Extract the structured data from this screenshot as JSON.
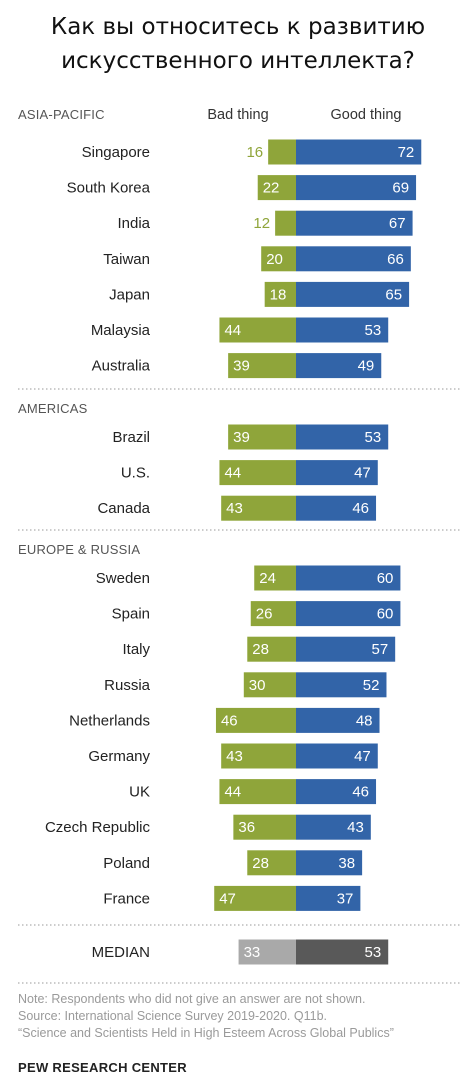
{
  "title_lines": [
    "Как вы относитесь к развитию",
    "искусственного интеллекта?"
  ],
  "chart_data": {
    "type": "bar",
    "orientation": "diverging-horizontal",
    "column_headers": {
      "left": "Bad thing",
      "right": "Good thing"
    },
    "colors": {
      "bad": "#8fa53a",
      "good": "#3264a8",
      "median_bad": "#a9a9a9",
      "median_good": "#595959",
      "label_inside": "#ffffff",
      "label_outside": "#8fa53a"
    },
    "series": [
      {
        "name": "Bad thing"
      },
      {
        "name": "Good thing"
      }
    ],
    "groups": [
      {
        "name": "ASIA-PACIFIC",
        "rows": [
          {
            "country": "Singapore",
            "bad": 16,
            "good": 72
          },
          {
            "country": "South Korea",
            "bad": 22,
            "good": 69
          },
          {
            "country": "India",
            "bad": 12,
            "good": 67
          },
          {
            "country": "Taiwan",
            "bad": 20,
            "good": 66
          },
          {
            "country": "Japan",
            "bad": 18,
            "good": 65
          },
          {
            "country": "Malaysia",
            "bad": 44,
            "good": 53
          },
          {
            "country": "Australia",
            "bad": 39,
            "good": 49
          }
        ]
      },
      {
        "name": "AMERICAS",
        "rows": [
          {
            "country": "Brazil",
            "bad": 39,
            "good": 53
          },
          {
            "country": "U.S.",
            "bad": 44,
            "good": 47
          },
          {
            "country": "Canada",
            "bad": 43,
            "good": 46
          }
        ]
      },
      {
        "name": "EUROPE & RUSSIA",
        "rows": [
          {
            "country": "Sweden",
            "bad": 24,
            "good": 60
          },
          {
            "country": "Spain",
            "bad": 26,
            "good": 60
          },
          {
            "country": "Italy",
            "bad": 28,
            "good": 57
          },
          {
            "country": "Russia",
            "bad": 30,
            "good": 52
          },
          {
            "country": "Netherlands",
            "bad": 46,
            "good": 48
          },
          {
            "country": "Germany",
            "bad": 43,
            "good": 47
          },
          {
            "country": "UK",
            "bad": 44,
            "good": 46
          },
          {
            "country": "Czech Republic",
            "bad": 36,
            "good": 43
          },
          {
            "country": "Poland",
            "bad": 28,
            "good": 38
          },
          {
            "country": "France",
            "bad": 47,
            "good": 37
          }
        ]
      }
    ],
    "median": {
      "label": "MEDIAN",
      "bad": 33,
      "good": 53
    }
  },
  "note_lines": [
    "Note: Respondents who did not give an answer are not shown.",
    "Source: International Science Survey 2019-2020. Q11b.",
    "“Science and Scientists Held in High Esteem Across Global Publics”"
  ],
  "brand": "PEW RESEARCH CENTER"
}
